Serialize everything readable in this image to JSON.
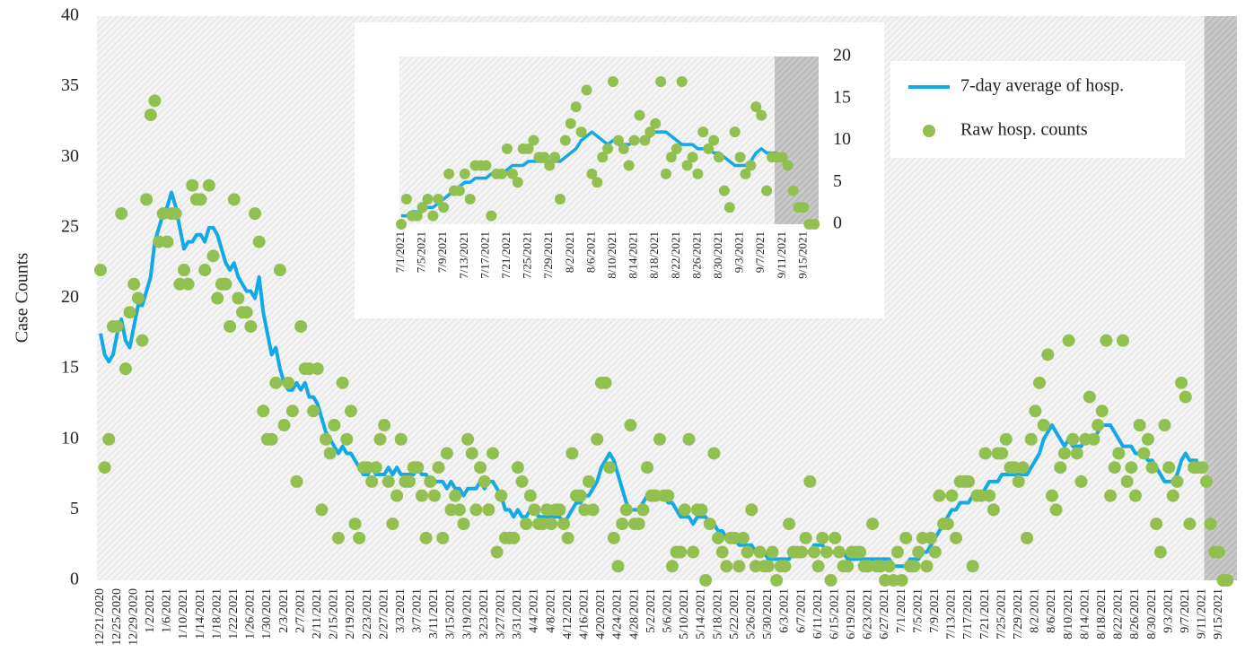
{
  "chart_data": [
    {
      "type": "line",
      "y_label": "Case Counts",
      "legend": "upper right",
      "ylim": [
        0,
        40
      ],
      "yticks": [
        0,
        5,
        10,
        15,
        20,
        25,
        30,
        35,
        40
      ],
      "categories": [
        "12/21/2020",
        null,
        null,
        null,
        "12/25/2020",
        null,
        null,
        null,
        "12/29/2020",
        null,
        null,
        null,
        "1/2/2021",
        null,
        null,
        null,
        "1/6/2021",
        null,
        null,
        null,
        "1/10/2021",
        null,
        null,
        null,
        "1/14/2021",
        null,
        null,
        null,
        "1/18/2021",
        null,
        null,
        null,
        "1/22/2021",
        null,
        null,
        null,
        "1/26/2021",
        null,
        null,
        null,
        "1/30/2021",
        null,
        null,
        null,
        "2/3/2021",
        null,
        null,
        null,
        "2/7/2021",
        null,
        null,
        null,
        "2/11/2021",
        null,
        null,
        null,
        "2/15/2021",
        null,
        null,
        null,
        "2/19/2021",
        null,
        null,
        null,
        "2/23/2021",
        null,
        null,
        null,
        "2/27/2021",
        null,
        null,
        null,
        "3/3/2021",
        null,
        null,
        null,
        "3/7/2021",
        null,
        null,
        null,
        "3/11/2021",
        null,
        null,
        null,
        "3/15/2021",
        null,
        null,
        null,
        "3/19/2021",
        null,
        null,
        null,
        "3/23/2021",
        null,
        null,
        null,
        "3/27/2021",
        null,
        null,
        null,
        "3/31/2021",
        null,
        null,
        null,
        "4/4/2021",
        null,
        null,
        null,
        "4/8/2021",
        null,
        null,
        null,
        "4/12/2021",
        null,
        null,
        null,
        "4/16/2021",
        null,
        null,
        null,
        "4/20/2021",
        null,
        null,
        null,
        "4/24/2021",
        null,
        null,
        null,
        "4/28/2021",
        null,
        null,
        null,
        "5/2/2021",
        null,
        null,
        null,
        "5/6/2021",
        null,
        null,
        null,
        "5/10/2021",
        null,
        null,
        null,
        "5/14/2021",
        null,
        null,
        null,
        "5/18/2021",
        null,
        null,
        null,
        "5/22/2021",
        null,
        null,
        null,
        "5/26/2021",
        null,
        null,
        null,
        "5/30/2021",
        null,
        null,
        null,
        "6/3/2021",
        null,
        null,
        null,
        "6/7/2021",
        null,
        null,
        null,
        "6/11/2021",
        null,
        null,
        null,
        "6/15/2021",
        null,
        null,
        null,
        "6/19/2021",
        null,
        null,
        null,
        "6/23/2021",
        null,
        null,
        null,
        "6/27/2021",
        null,
        null,
        null,
        "7/1/2021",
        null,
        null,
        null,
        "7/5/2021",
        null,
        null,
        null,
        "7/9/2021",
        null,
        null,
        null,
        "7/13/2021",
        null,
        null,
        null,
        "7/17/2021",
        null,
        null,
        null,
        "7/21/2021",
        null,
        null,
        null,
        "7/25/2021",
        null,
        null,
        null,
        "7/29/2021",
        null,
        null,
        null,
        "8/2/2021",
        null,
        null,
        null,
        "8/6/2021",
        null,
        null,
        null,
        "8/10/2021",
        null,
        null,
        null,
        "8/14/2021",
        null,
        null,
        null,
        "8/18/2021",
        null,
        null,
        null,
        "8/22/2021",
        null,
        null,
        null,
        "8/26/2021",
        null,
        null,
        null,
        "8/30/2021",
        null,
        null,
        null,
        "9/3/2021",
        null,
        null,
        null,
        "9/7/2021",
        null,
        null,
        null,
        "9/11/2021",
        null,
        null,
        null,
        "9/15/2021",
        null,
        null
      ],
      "series": [
        {
          "name": "7-day average of hosp.",
          "type": "line",
          "color": "#12a9e6",
          "values": [
            17.5,
            16,
            15.5,
            16,
            17.5,
            18.5,
            17,
            16.5,
            18,
            19.5,
            19.5,
            20.5,
            21.5,
            24,
            25,
            26,
            26.5,
            27.5,
            26.5,
            25,
            23.5,
            24,
            24,
            24.5,
            24.5,
            24,
            25,
            25,
            24.5,
            23.5,
            22.5,
            22,
            22.5,
            21.5,
            21,
            20.5,
            20.5,
            20,
            21.5,
            19,
            17.5,
            16,
            16.5,
            15,
            14,
            13.5,
            13.5,
            14,
            13.5,
            14,
            13,
            13,
            12.5,
            11.5,
            10.5,
            10,
            9.5,
            9,
            9.5,
            9,
            9,
            8.5,
            8,
            7.5,
            7.5,
            8,
            7.5,
            7.5,
            7.5,
            8,
            7.5,
            8,
            7.5,
            7.5,
            7.5,
            7.5,
            8,
            7.5,
            7.5,
            7,
            7,
            7,
            7,
            6.5,
            7,
            6.5,
            6.5,
            6,
            6.5,
            6.5,
            6.5,
            7,
            6.5,
            7,
            7,
            6.5,
            6,
            5,
            5,
            4.5,
            5,
            4.5,
            4.5,
            5,
            5,
            4.5,
            4.5,
            4.5,
            4.5,
            4.5,
            4.5,
            4,
            4.5,
            5,
            5.5,
            5.5,
            6,
            6,
            6.5,
            7,
            8,
            8.5,
            9,
            8.5,
            7.5,
            6.5,
            5.5,
            5,
            5,
            5,
            5.5,
            6,
            6,
            6,
            6,
            6,
            5.5,
            5.5,
            5,
            4.5,
            4.5,
            4.5,
            4,
            4.5,
            4.5,
            4.5,
            4,
            4,
            3.5,
            3.5,
            3,
            3,
            3,
            2.5,
            2.5,
            2.5,
            2.5,
            2,
            2,
            2,
            1.5,
            1.5,
            1.5,
            1.5,
            1.5,
            1.5,
            2,
            2,
            2,
            2,
            2,
            2.5,
            2.5,
            2.5,
            2,
            2,
            2,
            2,
            2,
            1.5,
            1.5,
            1.5,
            1.5,
            1.5,
            1.5,
            1.5,
            1.5,
            1.5,
            1.5,
            1.5,
            1,
            1,
            1,
            1,
            1.5,
            1.5,
            1.5,
            2,
            2,
            2.5,
            3,
            3.5,
            4,
            4.5,
            5,
            5,
            5.5,
            5.5,
            5.5,
            6,
            6,
            6,
            6.5,
            7,
            7,
            7,
            7.5,
            7.5,
            7.5,
            7.5,
            7.5,
            7.5,
            7.5,
            8,
            8.5,
            9,
            10,
            10.5,
            11,
            10.5,
            10,
            9.5,
            10,
            9.5,
            9.5,
            9.5,
            10,
            10,
            10,
            10.5,
            11,
            11,
            11,
            10.5,
            10,
            9.5,
            9.5,
            9.5,
            9,
            9,
            9,
            8.5,
            8.5,
            8,
            7.5,
            7,
            7,
            7,
            7.5,
            8.5,
            9,
            8.5,
            8.5,
            8.5,
            null,
            null,
            null,
            null,
            null,
            null,
            null
          ]
        },
        {
          "name": "Raw hosp. counts",
          "type": "scatter",
          "color": "#92c050",
          "values": [
            22,
            8,
            10,
            18,
            18,
            26,
            15,
            19,
            21,
            20,
            17,
            27,
            33,
            34,
            24,
            26,
            24,
            26,
            26,
            21,
            22,
            21,
            28,
            27,
            27,
            22,
            28,
            23,
            20,
            21,
            21,
            18,
            27,
            20,
            19,
            19,
            18,
            26,
            24,
            12,
            10,
            10,
            14,
            22,
            11,
            14,
            12,
            7,
            18,
            15,
            15,
            12,
            15,
            5,
            10,
            9,
            11,
            3,
            14,
            10,
            12,
            4,
            3,
            8,
            8,
            7,
            8,
            10,
            11,
            7,
            4,
            6,
            10,
            7,
            7,
            8,
            8,
            6,
            3,
            7,
            6,
            8,
            3,
            9,
            5,
            6,
            5,
            4,
            10,
            9,
            5,
            8,
            7,
            5,
            9,
            2,
            6,
            3,
            3,
            3,
            8,
            7,
            4,
            6,
            5,
            4,
            4,
            5,
            4,
            5,
            5,
            4,
            3,
            9,
            6,
            6,
            5,
            7,
            5,
            10,
            14,
            14,
            8,
            3,
            1,
            4,
            5,
            11,
            4,
            4,
            5,
            8,
            6,
            6,
            10,
            6,
            6,
            1,
            2,
            2,
            5,
            10,
            2,
            5,
            5,
            0,
            4,
            9,
            3,
            2,
            1,
            3,
            3,
            1,
            3,
            2,
            5,
            1,
            2,
            1,
            1,
            2,
            0,
            1,
            1,
            4,
            2,
            2,
            2,
            3,
            7,
            2,
            1,
            3,
            2,
            0,
            3,
            2,
            1,
            1,
            2,
            2,
            2,
            1,
            1,
            4,
            1,
            1,
            0,
            1,
            0,
            2,
            0,
            3,
            1,
            1,
            2,
            3,
            1,
            3,
            2,
            6,
            4,
            4,
            6,
            3,
            7,
            7,
            7,
            1,
            6,
            6,
            9,
            6,
            5,
            9,
            9,
            10,
            8,
            8,
            7,
            8,
            3,
            10,
            12,
            14,
            11,
            16,
            6,
            5,
            8,
            9,
            17,
            10,
            9,
            7,
            10,
            13,
            10,
            11,
            12,
            17,
            6,
            8,
            9,
            17,
            7,
            8,
            6,
            11,
            9,
            10,
            8,
            4,
            2,
            11,
            8,
            6,
            7,
            14,
            13,
            4,
            8,
            8,
            8,
            7,
            4,
            2,
            2,
            0,
            0
          ]
        }
      ]
    },
    {
      "type": "line",
      "ylim": [
        0,
        20
      ],
      "yticks": [
        0,
        5,
        10,
        15,
        20
      ],
      "categories": [
        "7/1/2021",
        null,
        null,
        null,
        "7/5/2021",
        null,
        null,
        null,
        "7/9/2021",
        null,
        null,
        null,
        "7/13/2021",
        null,
        null,
        null,
        "7/17/2021",
        null,
        null,
        null,
        "7/21/2021",
        null,
        null,
        null,
        "7/25/2021",
        null,
        null,
        null,
        "7/29/2021",
        null,
        null,
        null,
        "8/2/2021",
        null,
        null,
        null,
        "8/6/2021",
        null,
        null,
        null,
        "8/10/2021",
        null,
        null,
        null,
        "8/14/2021",
        null,
        null,
        null,
        "8/18/2021",
        null,
        null,
        null,
        "8/22/2021",
        null,
        null,
        null,
        "8/26/2021",
        null,
        null,
        null,
        "8/30/2021",
        null,
        null,
        null,
        "9/3/2021",
        null,
        null,
        null,
        "9/7/2021",
        null,
        null,
        null,
        "9/11/2021",
        null,
        null,
        null,
        "9/15/2021",
        null,
        null
      ],
      "series": [
        {
          "name": "7-day average of hosp.",
          "type": "line",
          "color": "#12a9e6",
          "values": [
            1,
            1,
            1.5,
            1.5,
            1.5,
            2,
            2,
            2.5,
            3,
            3.5,
            4,
            4.5,
            5,
            5,
            5.5,
            5.5,
            5.5,
            6,
            6,
            6,
            6.5,
            7,
            7,
            7,
            7.5,
            7.5,
            7.5,
            7.5,
            7.5,
            7.5,
            7.5,
            8,
            8.5,
            9,
            10,
            10.5,
            11,
            10.5,
            10,
            9.5,
            10,
            9.5,
            9.5,
            9.5,
            10,
            10,
            10,
            10.5,
            11,
            11,
            11,
            10.5,
            10,
            9.5,
            9.5,
            9.5,
            9,
            9,
            9,
            8.5,
            8.5,
            8,
            7.5,
            7,
            7,
            7,
            7.5,
            8.5,
            9,
            8.5,
            8.5,
            8.5,
            null,
            null,
            null,
            null,
            null,
            null,
            null
          ]
        },
        {
          "name": "Raw hosp. counts",
          "type": "scatter",
          "color": "#92c050",
          "values": [
            0,
            3,
            1,
            1,
            2,
            3,
            1,
            3,
            2,
            6,
            4,
            4,
            6,
            3,
            7,
            7,
            7,
            1,
            6,
            6,
            9,
            6,
            5,
            9,
            9,
            10,
            8,
            8,
            7,
            8,
            3,
            10,
            12,
            14,
            11,
            16,
            6,
            5,
            8,
            9,
            17,
            10,
            9,
            7,
            10,
            13,
            10,
            11,
            12,
            17,
            6,
            8,
            9,
            17,
            7,
            8,
            6,
            11,
            9,
            10,
            8,
            4,
            2,
            11,
            8,
            6,
            7,
            14,
            13,
            4,
            8,
            8,
            8,
            7,
            4,
            2,
            2,
            0,
            0
          ]
        }
      ]
    }
  ]
}
